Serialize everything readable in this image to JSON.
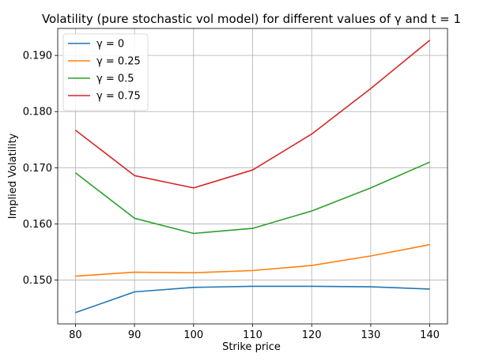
{
  "chart_data": {
    "type": "line",
    "title": "Volatility (pure stochastic vol model) for different values of γ and t = 1",
    "xlabel": "Strike price",
    "ylabel": "Implied Volatility",
    "x": [
      80,
      90,
      100,
      110,
      120,
      130,
      140
    ],
    "xlim": [
      77,
      143
    ],
    "ylim": [
      0.1422,
      0.1948
    ],
    "xticks": [
      "80",
      "90",
      "100",
      "110",
      "120",
      "130",
      "140"
    ],
    "yticks": [
      "0.150",
      "0.160",
      "0.170",
      "0.180",
      "0.190"
    ],
    "grid": true,
    "legend_position": "top-left",
    "series": [
      {
        "name": "γ = 0",
        "color": "#1f77b4",
        "values": [
          0.1442,
          0.1479,
          0.1487,
          0.1489,
          0.1489,
          0.1488,
          0.1484
        ]
      },
      {
        "name": "γ = 0.25",
        "color": "#ff7f0e",
        "values": [
          0.1507,
          0.1514,
          0.1513,
          0.1517,
          0.1526,
          0.1543,
          0.1563
        ]
      },
      {
        "name": "γ = 0.5",
        "color": "#2ca02c",
        "values": [
          0.1691,
          0.161,
          0.1583,
          0.1592,
          0.1623,
          0.1664,
          0.171
        ]
      },
      {
        "name": "γ = 0.75",
        "color": "#d62728",
        "values": [
          0.1767,
          0.1686,
          0.1664,
          0.1696,
          0.176,
          0.1841,
          0.1927
        ]
      }
    ]
  }
}
